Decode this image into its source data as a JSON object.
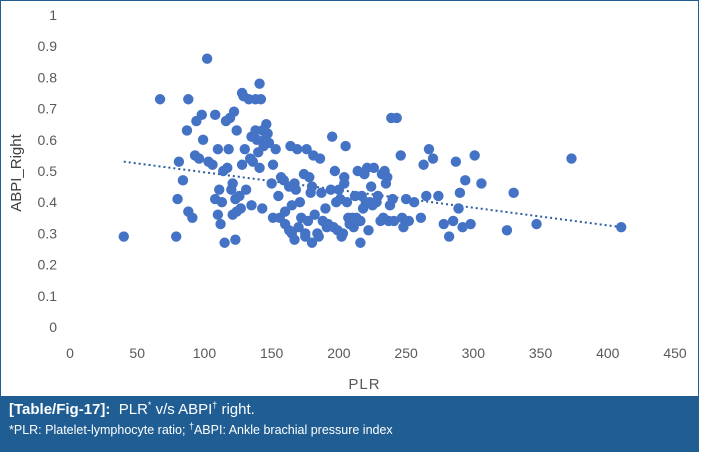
{
  "chart_data": {
    "type": "scatter",
    "xlabel": "PLR",
    "ylabel": "ABPI_Right",
    "xlim": [
      0,
      450
    ],
    "ylim": [
      0,
      1
    ],
    "x_ticks": [
      "0",
      "50",
      "100",
      "150",
      "200",
      "250",
      "300",
      "350",
      "400",
      "450"
    ],
    "y_ticks": [
      "0",
      "0.1",
      "0.2",
      "0.3",
      "0.4",
      "0.5",
      "0.6",
      "0.7",
      "0.8",
      "0.9",
      "1"
    ],
    "grid": false,
    "trendline": {
      "style": "dotted linear",
      "x": [
        40,
        410
      ],
      "y": [
        0.53,
        0.32
      ]
    },
    "colors": {
      "points": "#4472c4",
      "trendline": "#2e5c9e",
      "caption_bg": "#1f5d93"
    },
    "points": [
      [
        40,
        0.29
      ],
      [
        67,
        0.73
      ],
      [
        79,
        0.29
      ],
      [
        80,
        0.41
      ],
      [
        81,
        0.53
      ],
      [
        84,
        0.47
      ],
      [
        87,
        0.63
      ],
      [
        88,
        0.73
      ],
      [
        88,
        0.37
      ],
      [
        91,
        0.35
      ],
      [
        93,
        0.55
      ],
      [
        94,
        0.66
      ],
      [
        96,
        0.54
      ],
      [
        98,
        0.68
      ],
      [
        99,
        0.6
      ],
      [
        102,
        0.86
      ],
      [
        103,
        0.53
      ],
      [
        106,
        0.52
      ],
      [
        108,
        0.41
      ],
      [
        108,
        0.68
      ],
      [
        110,
        0.57
      ],
      [
        110,
        0.36
      ],
      [
        111,
        0.44
      ],
      [
        112,
        0.33
      ],
      [
        113,
        0.4
      ],
      [
        114,
        0.5
      ],
      [
        115,
        0.27
      ],
      [
        116,
        0.66
      ],
      [
        117,
        0.51
      ],
      [
        118,
        0.57
      ],
      [
        119,
        0.67
      ],
      [
        120,
        0.44
      ],
      [
        121,
        0.36
      ],
      [
        121,
        0.46
      ],
      [
        122,
        0.69
      ],
      [
        123,
        0.28
      ],
      [
        123,
        0.41
      ],
      [
        124,
        0.63
      ],
      [
        124,
        0.37
      ],
      [
        126,
        0.42
      ],
      [
        127,
        0.38
      ],
      [
        128,
        0.75
      ],
      [
        128,
        0.52
      ],
      [
        129,
        0.74
      ],
      [
        130,
        0.57
      ],
      [
        131,
        0.44
      ],
      [
        133,
        0.73
      ],
      [
        134,
        0.54
      ],
      [
        135,
        0.61
      ],
      [
        135,
        0.39
      ],
      [
        136,
        0.53
      ],
      [
        138,
        0.73
      ],
      [
        138,
        0.63
      ],
      [
        139,
        0.6
      ],
      [
        140,
        0.56
      ],
      [
        141,
        0.78
      ],
      [
        141,
        0.51
      ],
      [
        142,
        0.73
      ],
      [
        143,
        0.38
      ],
      [
        143,
        0.63
      ],
      [
        144,
        0.58
      ],
      [
        145,
        0.6
      ],
      [
        146,
        0.65
      ],
      [
        147,
        0.62
      ],
      [
        148,
        0.59
      ],
      [
        150,
        0.46
      ],
      [
        151,
        0.52
      ],
      [
        151,
        0.35
      ],
      [
        153,
        0.57
      ],
      [
        155,
        0.42
      ],
      [
        156,
        0.35
      ],
      [
        157,
        0.48
      ],
      [
        159,
        0.47
      ],
      [
        160,
        0.37
      ],
      [
        160,
        0.33
      ],
      [
        163,
        0.45
      ],
      [
        163,
        0.31
      ],
      [
        164,
        0.58
      ],
      [
        165,
        0.39
      ],
      [
        165,
        0.3
      ],
      [
        167,
        0.28
      ],
      [
        167,
        0.46
      ],
      [
        168,
        0.44
      ],
      [
        169,
        0.57
      ],
      [
        170,
        0.32
      ],
      [
        171,
        0.4
      ],
      [
        172,
        0.35
      ],
      [
        174,
        0.49
      ],
      [
        175,
        0.3
      ],
      [
        175,
        0.29
      ],
      [
        176,
        0.57
      ],
      [
        177,
        0.34
      ],
      [
        178,
        0.48
      ],
      [
        179,
        0.43
      ],
      [
        180,
        0.45
      ],
      [
        180,
        0.27
      ],
      [
        181,
        0.55
      ],
      [
        182,
        0.36
      ],
      [
        184,
        0.3
      ],
      [
        185,
        0.29
      ],
      [
        186,
        0.54
      ],
      [
        187,
        0.43
      ],
      [
        188,
        0.34
      ],
      [
        190,
        0.38
      ],
      [
        191,
        0.32
      ],
      [
        192,
        0.33
      ],
      [
        194,
        0.44
      ],
      [
        195,
        0.61
      ],
      [
        196,
        0.32
      ],
      [
        197,
        0.5
      ],
      [
        198,
        0.4
      ],
      [
        199,
        0.31
      ],
      [
        200,
        0.44
      ],
      [
        201,
        0.41
      ],
      [
        202,
        0.29
      ],
      [
        203,
        0.3
      ],
      [
        204,
        0.46
      ],
      [
        204,
        0.48
      ],
      [
        205,
        0.58
      ],
      [
        206,
        0.4
      ],
      [
        207,
        0.35
      ],
      [
        208,
        0.33
      ],
      [
        210,
        0.35
      ],
      [
        211,
        0.32
      ],
      [
        212,
        0.42
      ],
      [
        213,
        0.35
      ],
      [
        214,
        0.5
      ],
      [
        215,
        0.34
      ],
      [
        216,
        0.27
      ],
      [
        216,
        0.34
      ],
      [
        217,
        0.42
      ],
      [
        218,
        0.38
      ],
      [
        219,
        0.49
      ],
      [
        220,
        0.4
      ],
      [
        221,
        0.51
      ],
      [
        222,
        0.31
      ],
      [
        223,
        0.4
      ],
      [
        224,
        0.45
      ],
      [
        225,
        0.39
      ],
      [
        226,
        0.51
      ],
      [
        228,
        0.4
      ],
      [
        229,
        0.42
      ],
      [
        231,
        0.34
      ],
      [
        232,
        0.49
      ],
      [
        233,
        0.35
      ],
      [
        234,
        0.5
      ],
      [
        235,
        0.46
      ],
      [
        236,
        0.48
      ],
      [
        237,
        0.34
      ],
      [
        238,
        0.39
      ],
      [
        239,
        0.67
      ],
      [
        240,
        0.41
      ],
      [
        241,
        0.34
      ],
      [
        243,
        0.67
      ],
      [
        246,
        0.55
      ],
      [
        247,
        0.35
      ],
      [
        248,
        0.32
      ],
      [
        250,
        0.41
      ],
      [
        252,
        0.34
      ],
      [
        256,
        0.4
      ],
      [
        261,
        0.35
      ],
      [
        263,
        0.52
      ],
      [
        265,
        0.42
      ],
      [
        267,
        0.57
      ],
      [
        270,
        0.54
      ],
      [
        274,
        0.42
      ],
      [
        278,
        0.33
      ],
      [
        282,
        0.29
      ],
      [
        285,
        0.34
      ],
      [
        287,
        0.53
      ],
      [
        289,
        0.38
      ],
      [
        290,
        0.43
      ],
      [
        292,
        0.32
      ],
      [
        294,
        0.47
      ],
      [
        298,
        0.33
      ],
      [
        301,
        0.55
      ],
      [
        306,
        0.46
      ],
      [
        325,
        0.31
      ],
      [
        330,
        0.43
      ],
      [
        347,
        0.33
      ],
      [
        373,
        0.54
      ],
      [
        410,
        0.32
      ]
    ]
  },
  "caption": {
    "label": "[Table/Fig-17]:",
    "text_a": "PLR",
    "sup_a": "*",
    "text_b": " v/s ABPI",
    "sup_b": "†",
    "text_c": " right.",
    "note_a": "*PLR: Platelet-lymphocyte ratio; ",
    "note_sup": "†",
    "note_b": "ABPI: Ankle brachial pressure index"
  }
}
